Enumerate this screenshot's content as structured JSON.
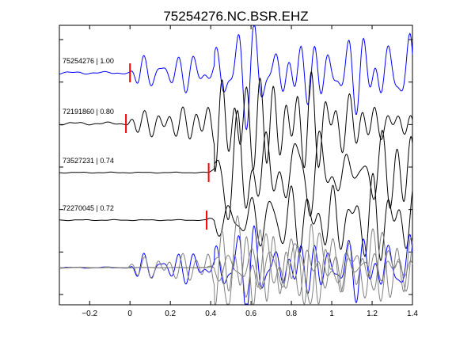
{
  "chart_data": {
    "type": "line",
    "title": "75254276.NC.BSR.EHZ",
    "xlabel": "",
    "ylabel": "",
    "xlim": [
      -0.35,
      1.4
    ],
    "x_ticks": [
      -0.2,
      0,
      0.2,
      0.4,
      0.6,
      0.8,
      1,
      1.2,
      1.4
    ],
    "x_tick_labels": [
      "−0.2",
      "0",
      "0.2",
      "0.4",
      "0.6",
      "0.8",
      "1",
      "1.2",
      "1.4"
    ],
    "y_ticks_count": 7,
    "grid": false,
    "colors": {
      "reference": "#0000ff",
      "match": "#000000",
      "overlay_match": "#808080",
      "pick": "#ff0000"
    },
    "series": [
      {
        "name": "75254276 | 1.00",
        "color": "#0000ff",
        "pick_time": 0.0,
        "noise": 0.3
      },
      {
        "name": "72191860 | 0.80",
        "color": "#000000",
        "pick_time": -0.02,
        "noise": 0.35
      },
      {
        "name": "73527231 | 0.74",
        "color": "#000000",
        "pick_time": 0.39,
        "noise": 0.12
      },
      {
        "name": "72270045 | 0.72",
        "color": "#000000",
        "pick_time": 0.38,
        "noise": 0.12
      }
    ],
    "overlay": {
      "reference_color": "#0000ff",
      "match_color": "#808080"
    }
  }
}
